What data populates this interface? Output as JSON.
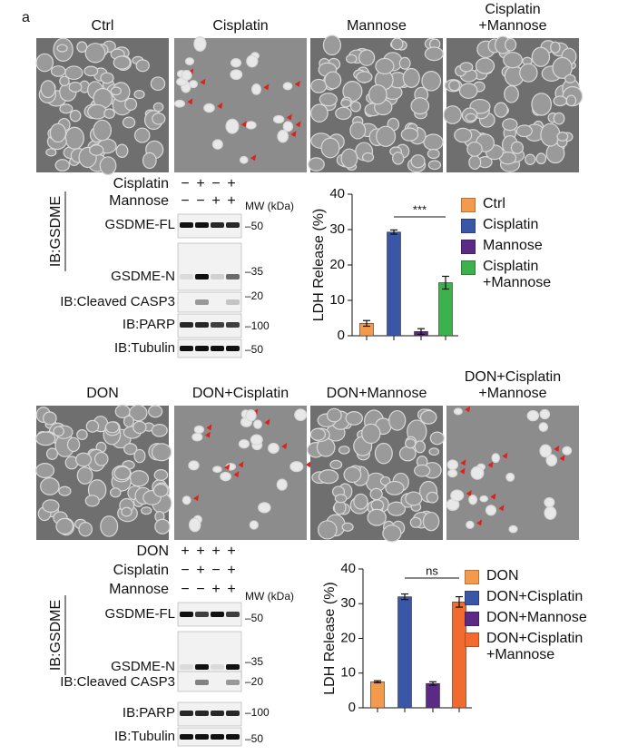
{
  "panel_label": "a",
  "sections": [
    {
      "image_labels": [
        "Ctrl",
        "Cisplatin",
        "Mannose",
        "Cisplatin +Mannose"
      ],
      "blot": {
        "treatments": [
          {
            "name": "Cisplatin",
            "signs": [
              "−",
              "+",
              "−",
              "+"
            ]
          },
          {
            "name": "Mannose",
            "signs": [
              "−",
              "−",
              "+",
              "+"
            ]
          }
        ],
        "mw_title": "MW (kDa)",
        "group_label": "IB:GSDME",
        "rows": [
          {
            "label": "GSDME-FL",
            "marker": "–50"
          },
          {
            "label": "GSDME-N",
            "marker": "–35"
          },
          {
            "label": "IB:Cleaved CASP3",
            "marker": "–20"
          },
          {
            "label": "IB:PARP",
            "marker": "–100"
          },
          {
            "label": "IB:Tubulin",
            "marker": "–50"
          }
        ]
      }
    },
    {
      "image_labels": [
        "DON",
        "DON+Cisplatin",
        "DON+Mannose",
        "DON+Cisplatin +Mannose"
      ],
      "blot": {
        "treatments": [
          {
            "name": "DON",
            "signs": [
              "+",
              "+",
              "+",
              "+"
            ]
          },
          {
            "name": "Cisplatin",
            "signs": [
              "−",
              "+",
              "−",
              "+"
            ]
          },
          {
            "name": "Mannose",
            "signs": [
              "−",
              "−",
              "+",
              "+"
            ]
          }
        ],
        "mw_title": "MW (kDa)",
        "group_label": "IB:GSDME",
        "rows": [
          {
            "label": "GSDME-FL",
            "marker": "–50"
          },
          {
            "label": "GSDME-N",
            "marker": "–35"
          },
          {
            "label": "IB:Cleaved CASP3",
            "marker": "–20"
          },
          {
            "label": "IB:PARP",
            "marker": "–100"
          },
          {
            "label": "IB:Tubulin",
            "marker": "–50"
          }
        ]
      }
    }
  ],
  "chart_data": [
    {
      "type": "bar",
      "ylabel": "LDH Release (%)",
      "categories": [
        "Ctrl",
        "Cisplatin",
        "Mannose",
        "Cisplatin +Mannose"
      ],
      "colors": [
        "#f49a4c",
        "#3a56a6",
        "#5a2a84",
        "#3db14c"
      ],
      "values": [
        3.5,
        29.3,
        1.2,
        15
      ],
      "errors": [
        0.8,
        0.6,
        0.8,
        1.8
      ],
      "ylim": [
        0,
        40
      ],
      "yticks": [
        0,
        10,
        20,
        30,
        40
      ],
      "annotation": "***"
    },
    {
      "type": "bar",
      "ylabel": "LDH Release (%)",
      "categories": [
        "DON",
        "DON+Cisplatin",
        "DON+Mannose",
        "DON+Cisplatin +Mannose"
      ],
      "colors": [
        "#f49a4c",
        "#3a56a6",
        "#5a2a84",
        "#f26a2e"
      ],
      "values": [
        7.5,
        32,
        7,
        30.5
      ],
      "errors": [
        0.3,
        0.8,
        0.5,
        1.5
      ],
      "ylim": [
        0,
        40
      ],
      "yticks": [
        0,
        10,
        20,
        30,
        40
      ],
      "annotation": "ns"
    }
  ]
}
